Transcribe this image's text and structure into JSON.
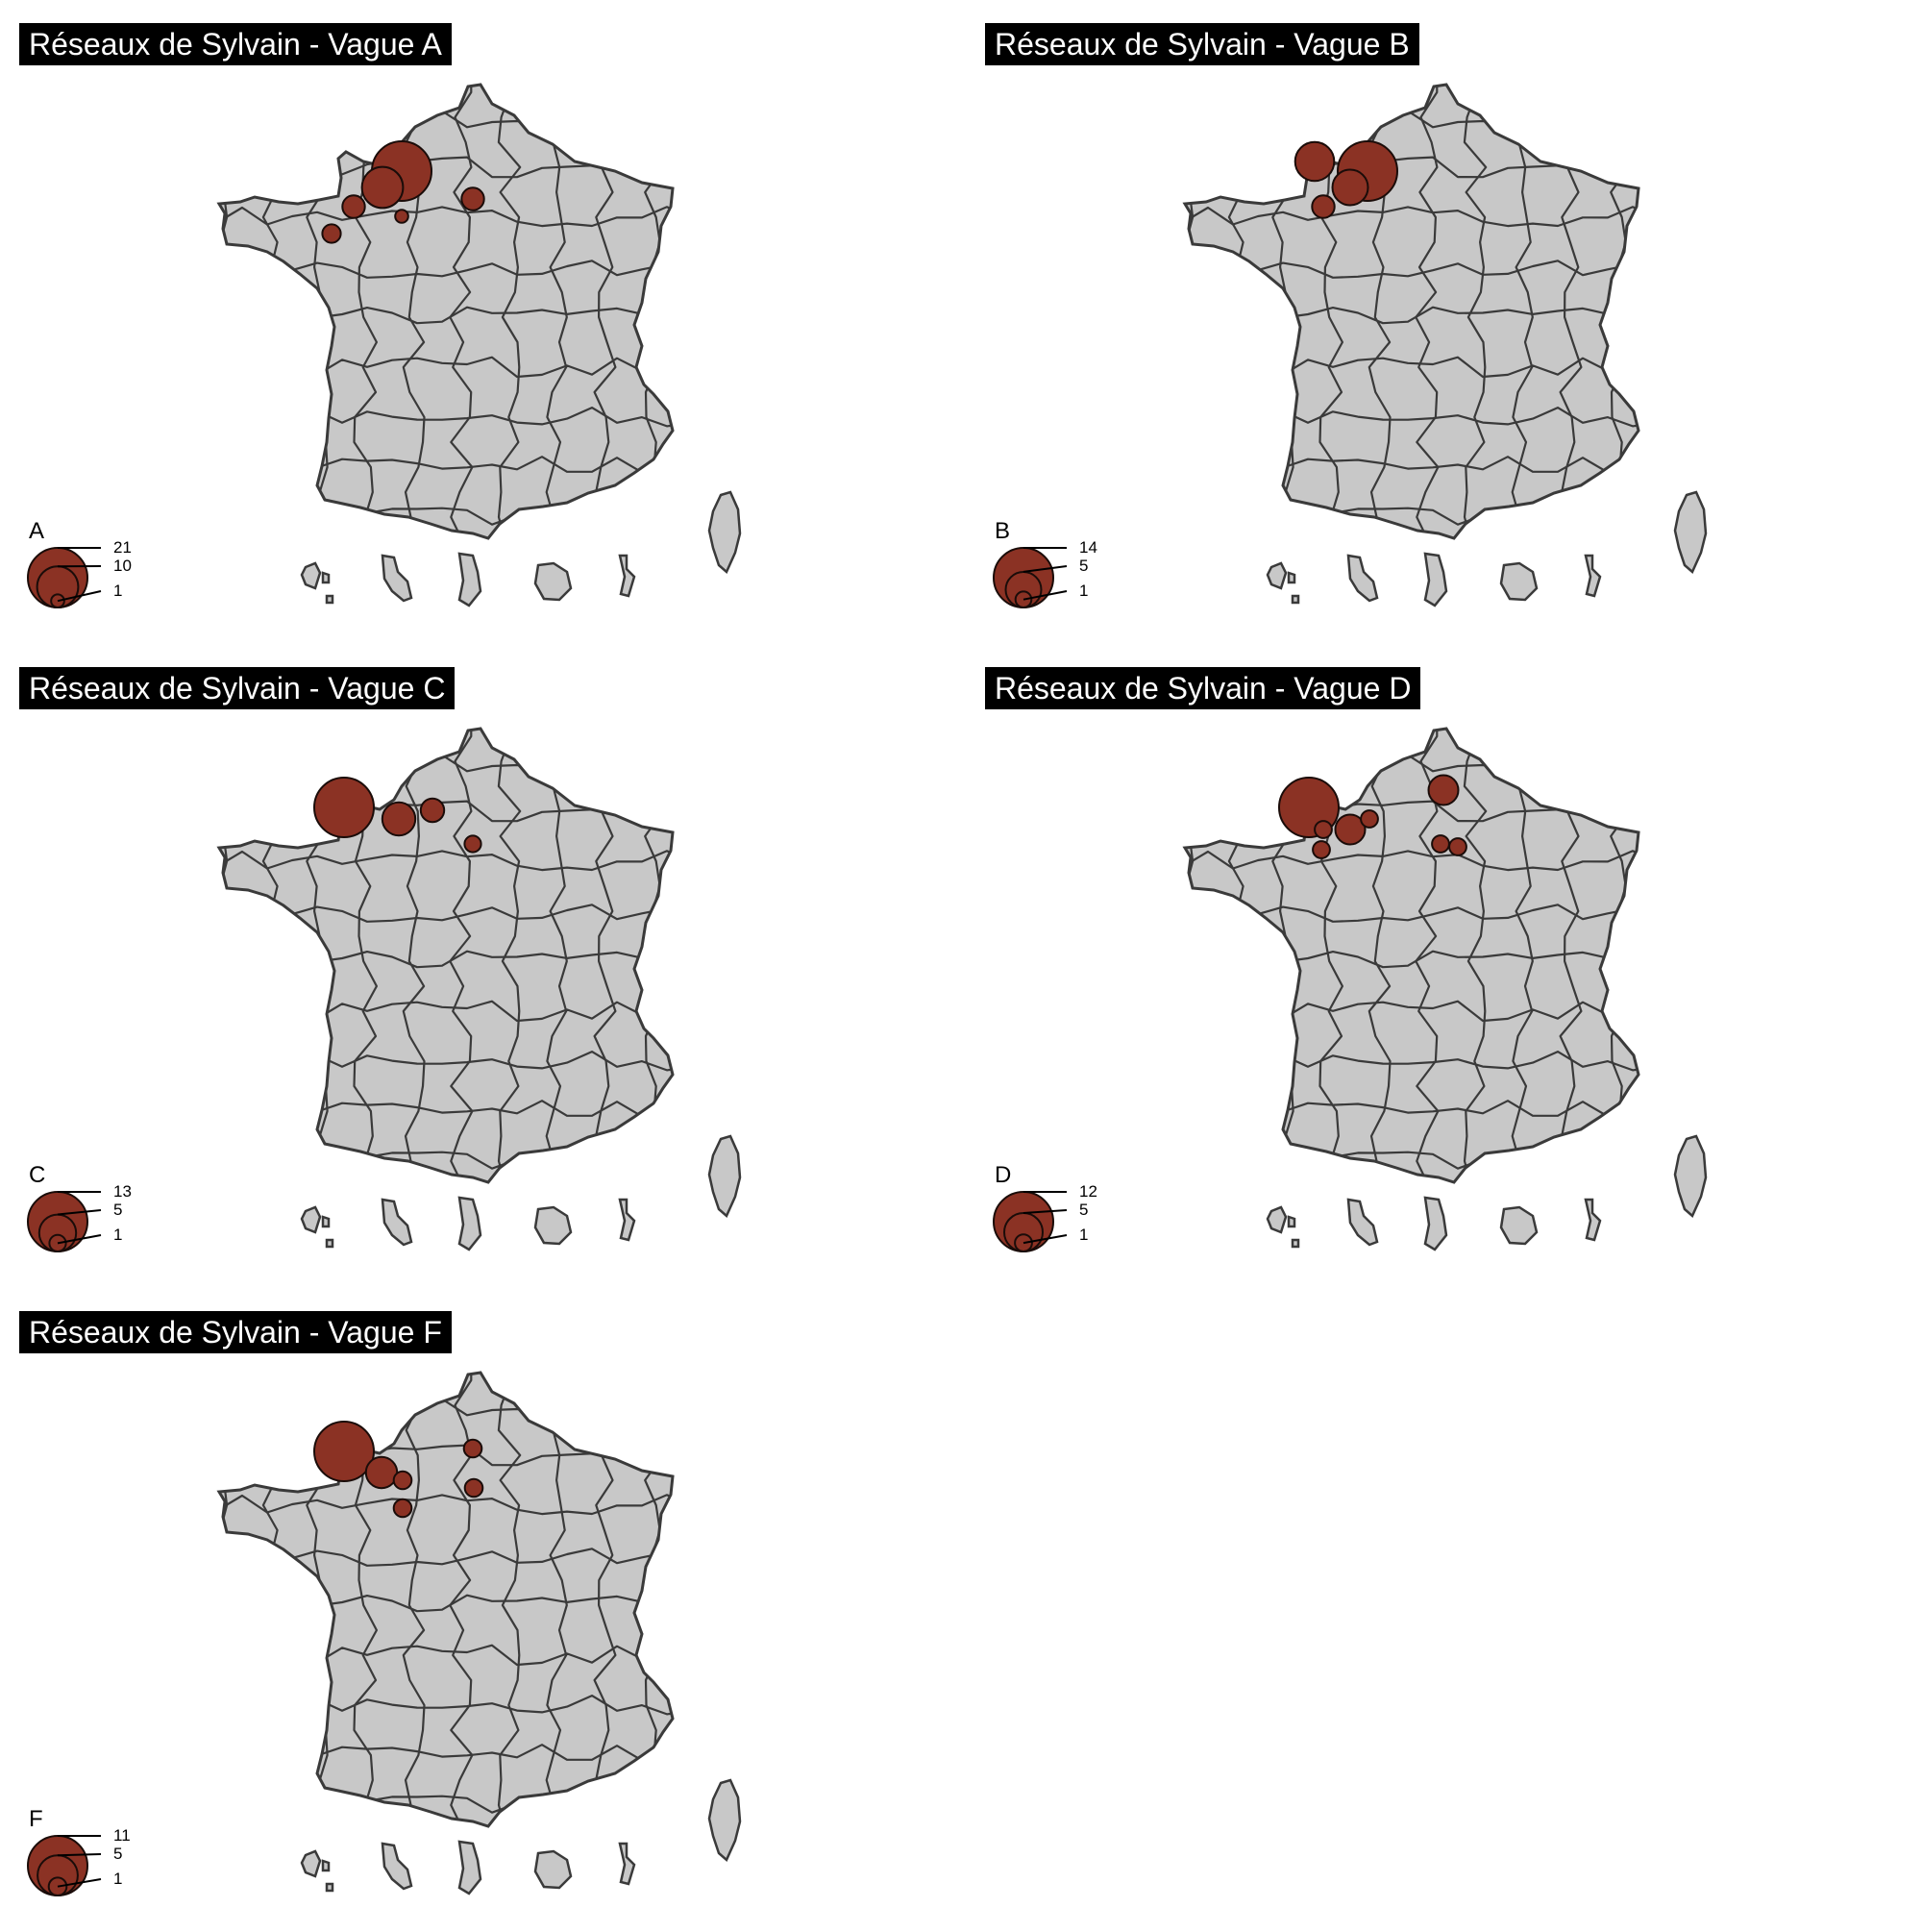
{
  "colors": {
    "land": "#c8c8c8",
    "border": "#3a3a3a",
    "bubble": "#8b3224",
    "bubble_stroke": "#1a0c09",
    "title_bg": "#000000",
    "title_fg": "#ffffff"
  },
  "panels": [
    {
      "title": "Réseaux de Sylvain - Vague A",
      "legend_letter": "A",
      "legend_values": [
        "21",
        "10",
        "1"
      ],
      "bubbles": [
        {
          "dept": "Seine-Maritime / Eure",
          "value": 21
        },
        {
          "dept": "Calvados",
          "value": 10
        },
        {
          "dept": "Manche",
          "value": 3
        },
        {
          "dept": "Orne",
          "value": 1
        },
        {
          "dept": "Marne",
          "value": 3
        },
        {
          "dept": "Ille-et-Vilaine",
          "value": 2
        }
      ]
    },
    {
      "title": "Réseaux de Sylvain - Vague B",
      "legend_letter": "B",
      "legend_values": [
        "14",
        "5",
        "1"
      ],
      "bubbles": [
        {
          "dept": "Manche (nord)",
          "value": 6
        },
        {
          "dept": "Seine-Maritime / Eure",
          "value": 14
        },
        {
          "dept": "Calvados",
          "value": 5
        },
        {
          "dept": "Manche",
          "value": 2
        }
      ]
    },
    {
      "title": "Réseaux de Sylvain - Vague C",
      "legend_letter": "C",
      "legend_values": [
        "13",
        "5",
        "1"
      ],
      "bubbles": [
        {
          "dept": "Manche (nord)",
          "value": 13
        },
        {
          "dept": "Calvados",
          "value": 4
        },
        {
          "dept": "Seine-Maritime",
          "value": 2
        },
        {
          "dept": "Marne",
          "value": 1
        }
      ]
    },
    {
      "title": "Réseaux de Sylvain - Vague D",
      "legend_letter": "D",
      "legend_values": [
        "12",
        "5",
        "1"
      ],
      "bubbles": [
        {
          "dept": "Manche (nord)",
          "value": 12
        },
        {
          "dept": "Manche",
          "value": 1
        },
        {
          "dept": "Manche (sud)",
          "value": 1
        },
        {
          "dept": "Calvados",
          "value": 3
        },
        {
          "dept": "Eure",
          "value": 1
        },
        {
          "dept": "Somme",
          "value": 3
        },
        {
          "dept": "Marne",
          "value": 1
        },
        {
          "dept": "Marne (est)",
          "value": 1
        }
      ]
    },
    {
      "title": "Réseaux de Sylvain - Vague F",
      "legend_letter": "F",
      "legend_values": [
        "11",
        "5",
        "1"
      ],
      "bubbles": [
        {
          "dept": "Manche (nord)",
          "value": 11
        },
        {
          "dept": "Calvados",
          "value": 3
        },
        {
          "dept": "Eure",
          "value": 1
        },
        {
          "dept": "Orne",
          "value": 1
        },
        {
          "dept": "Somme",
          "value": 1
        },
        {
          "dept": "Marne",
          "value": 1
        }
      ]
    }
  ]
}
